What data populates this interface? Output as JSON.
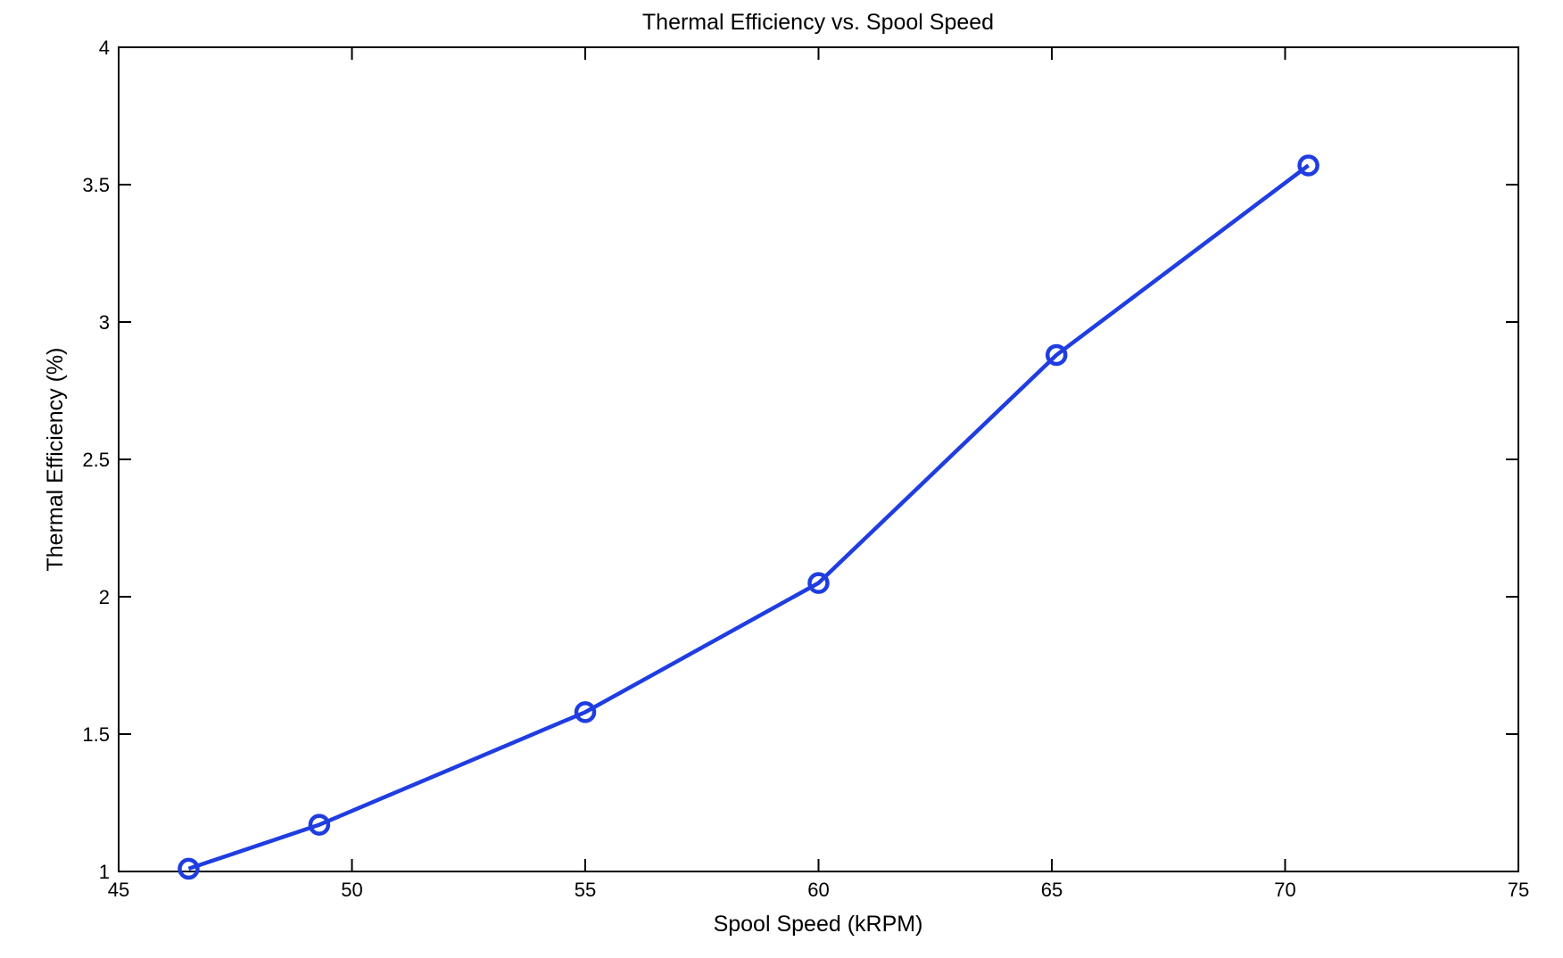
{
  "chart_data": {
    "type": "line",
    "title": "Thermal Efficiency vs. Spool Speed",
    "xlabel": "Spool Speed (kRPM)",
    "ylabel": "Thermal Efficiency (%)",
    "xlim": [
      45,
      75
    ],
    "ylim": [
      1,
      4
    ],
    "xticks": [
      45,
      50,
      55,
      60,
      65,
      70,
      75
    ],
    "yticks": [
      1,
      1.5,
      2,
      2.5,
      3,
      3.5,
      4
    ],
    "xtick_labels": [
      "45",
      "50",
      "55",
      "60",
      "65",
      "70",
      "75"
    ],
    "ytick_labels": [
      "1",
      "1.5",
      "2",
      "2.5",
      "3",
      "3.5",
      "4"
    ],
    "grid": false,
    "series": [
      {
        "x": [
          46.5,
          49.3,
          55.0,
          60.0,
          65.1,
          70.5
        ],
        "y": [
          1.01,
          1.17,
          1.58,
          2.05,
          2.88,
          3.57
        ],
        "color": "#1f3de0",
        "marker": "circle"
      }
    ]
  }
}
